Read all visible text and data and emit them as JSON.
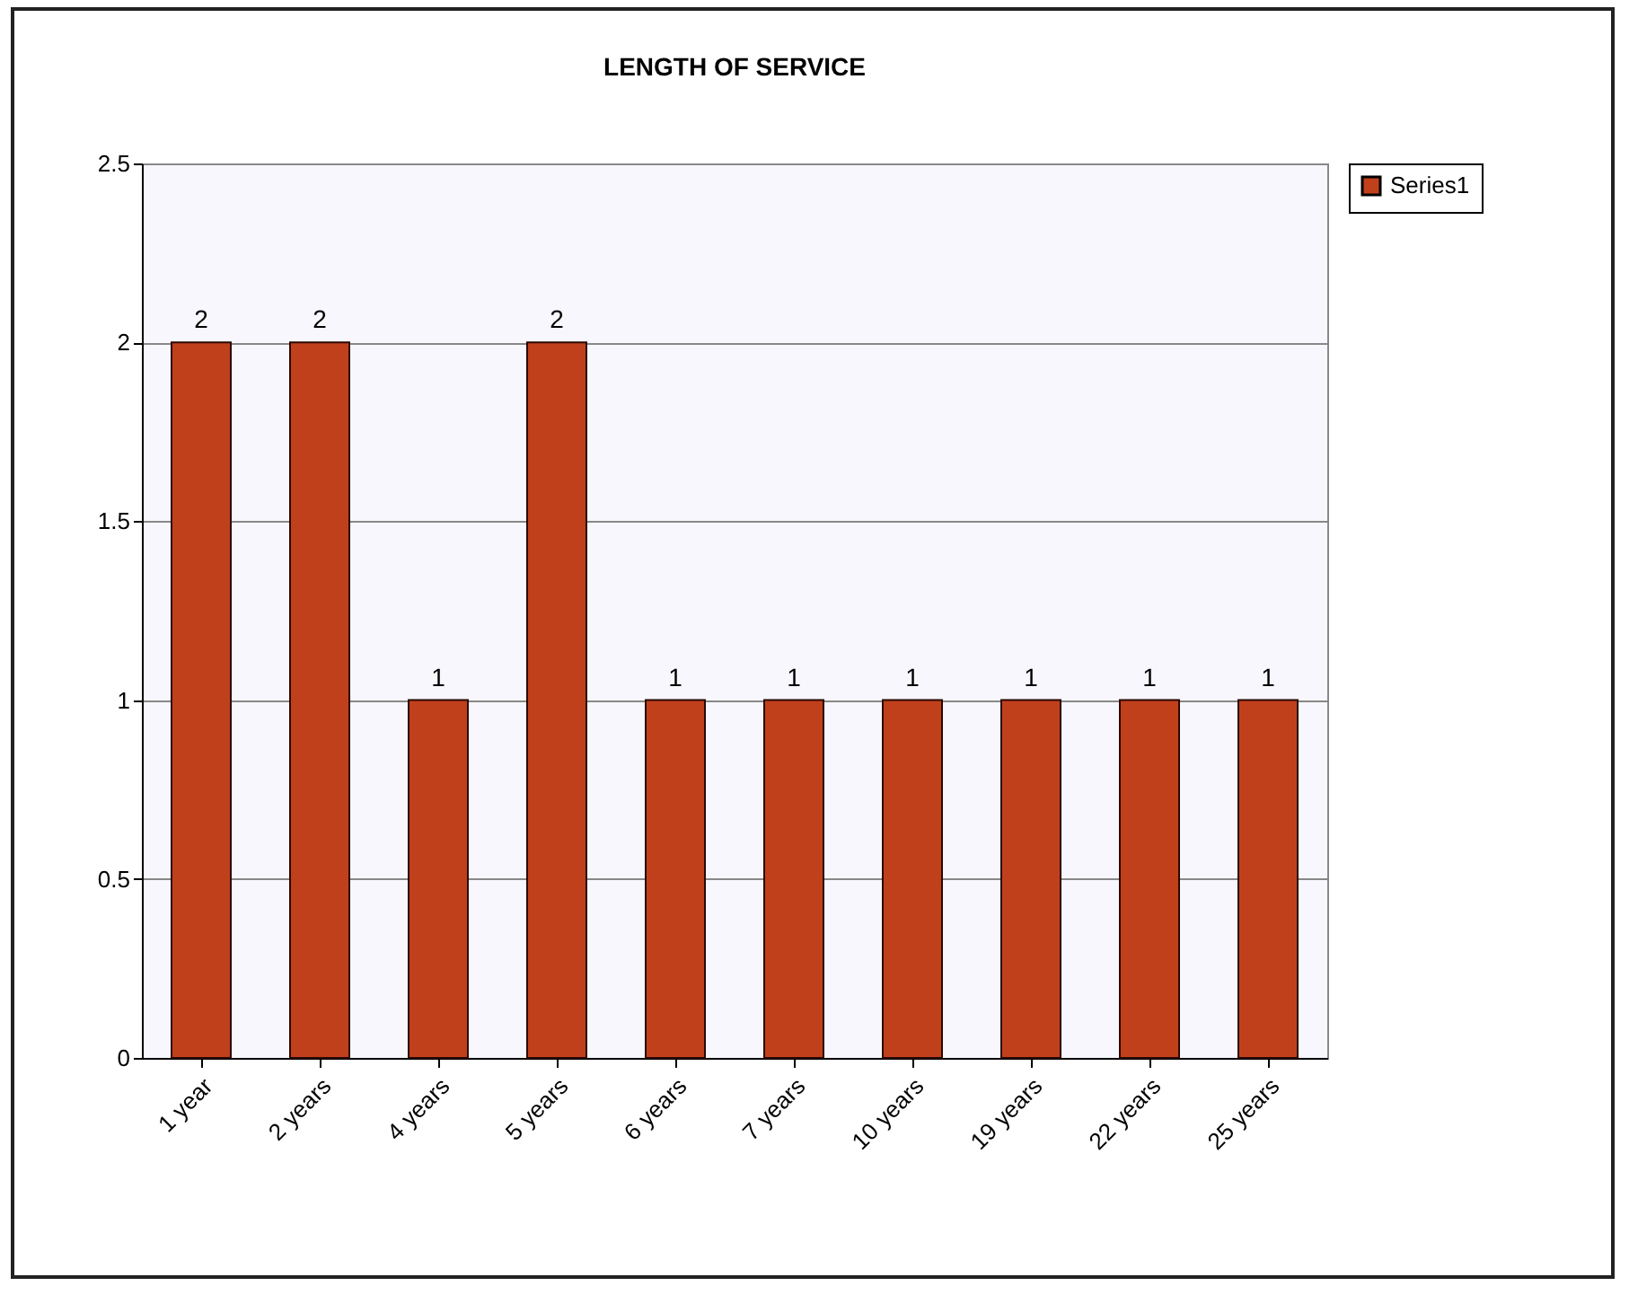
{
  "chart_data": {
    "type": "bar",
    "title": "LENGTH OF SERVICE",
    "categories": [
      "1 year",
      "2 years",
      "4 years",
      "5 years",
      "6 years",
      "7 years",
      "10 years",
      "19 years",
      "22 years",
      "25 years"
    ],
    "series": [
      {
        "name": "Series1",
        "color": "#c1401c",
        "values": [
          2,
          2,
          1,
          2,
          1,
          1,
          1,
          1,
          1,
          1
        ]
      }
    ],
    "ylim": [
      0,
      2.5
    ],
    "yticks": [
      0,
      0.5,
      1,
      1.5,
      2,
      2.5
    ],
    "grid": "y",
    "legend": "right",
    "data_labels": true
  }
}
